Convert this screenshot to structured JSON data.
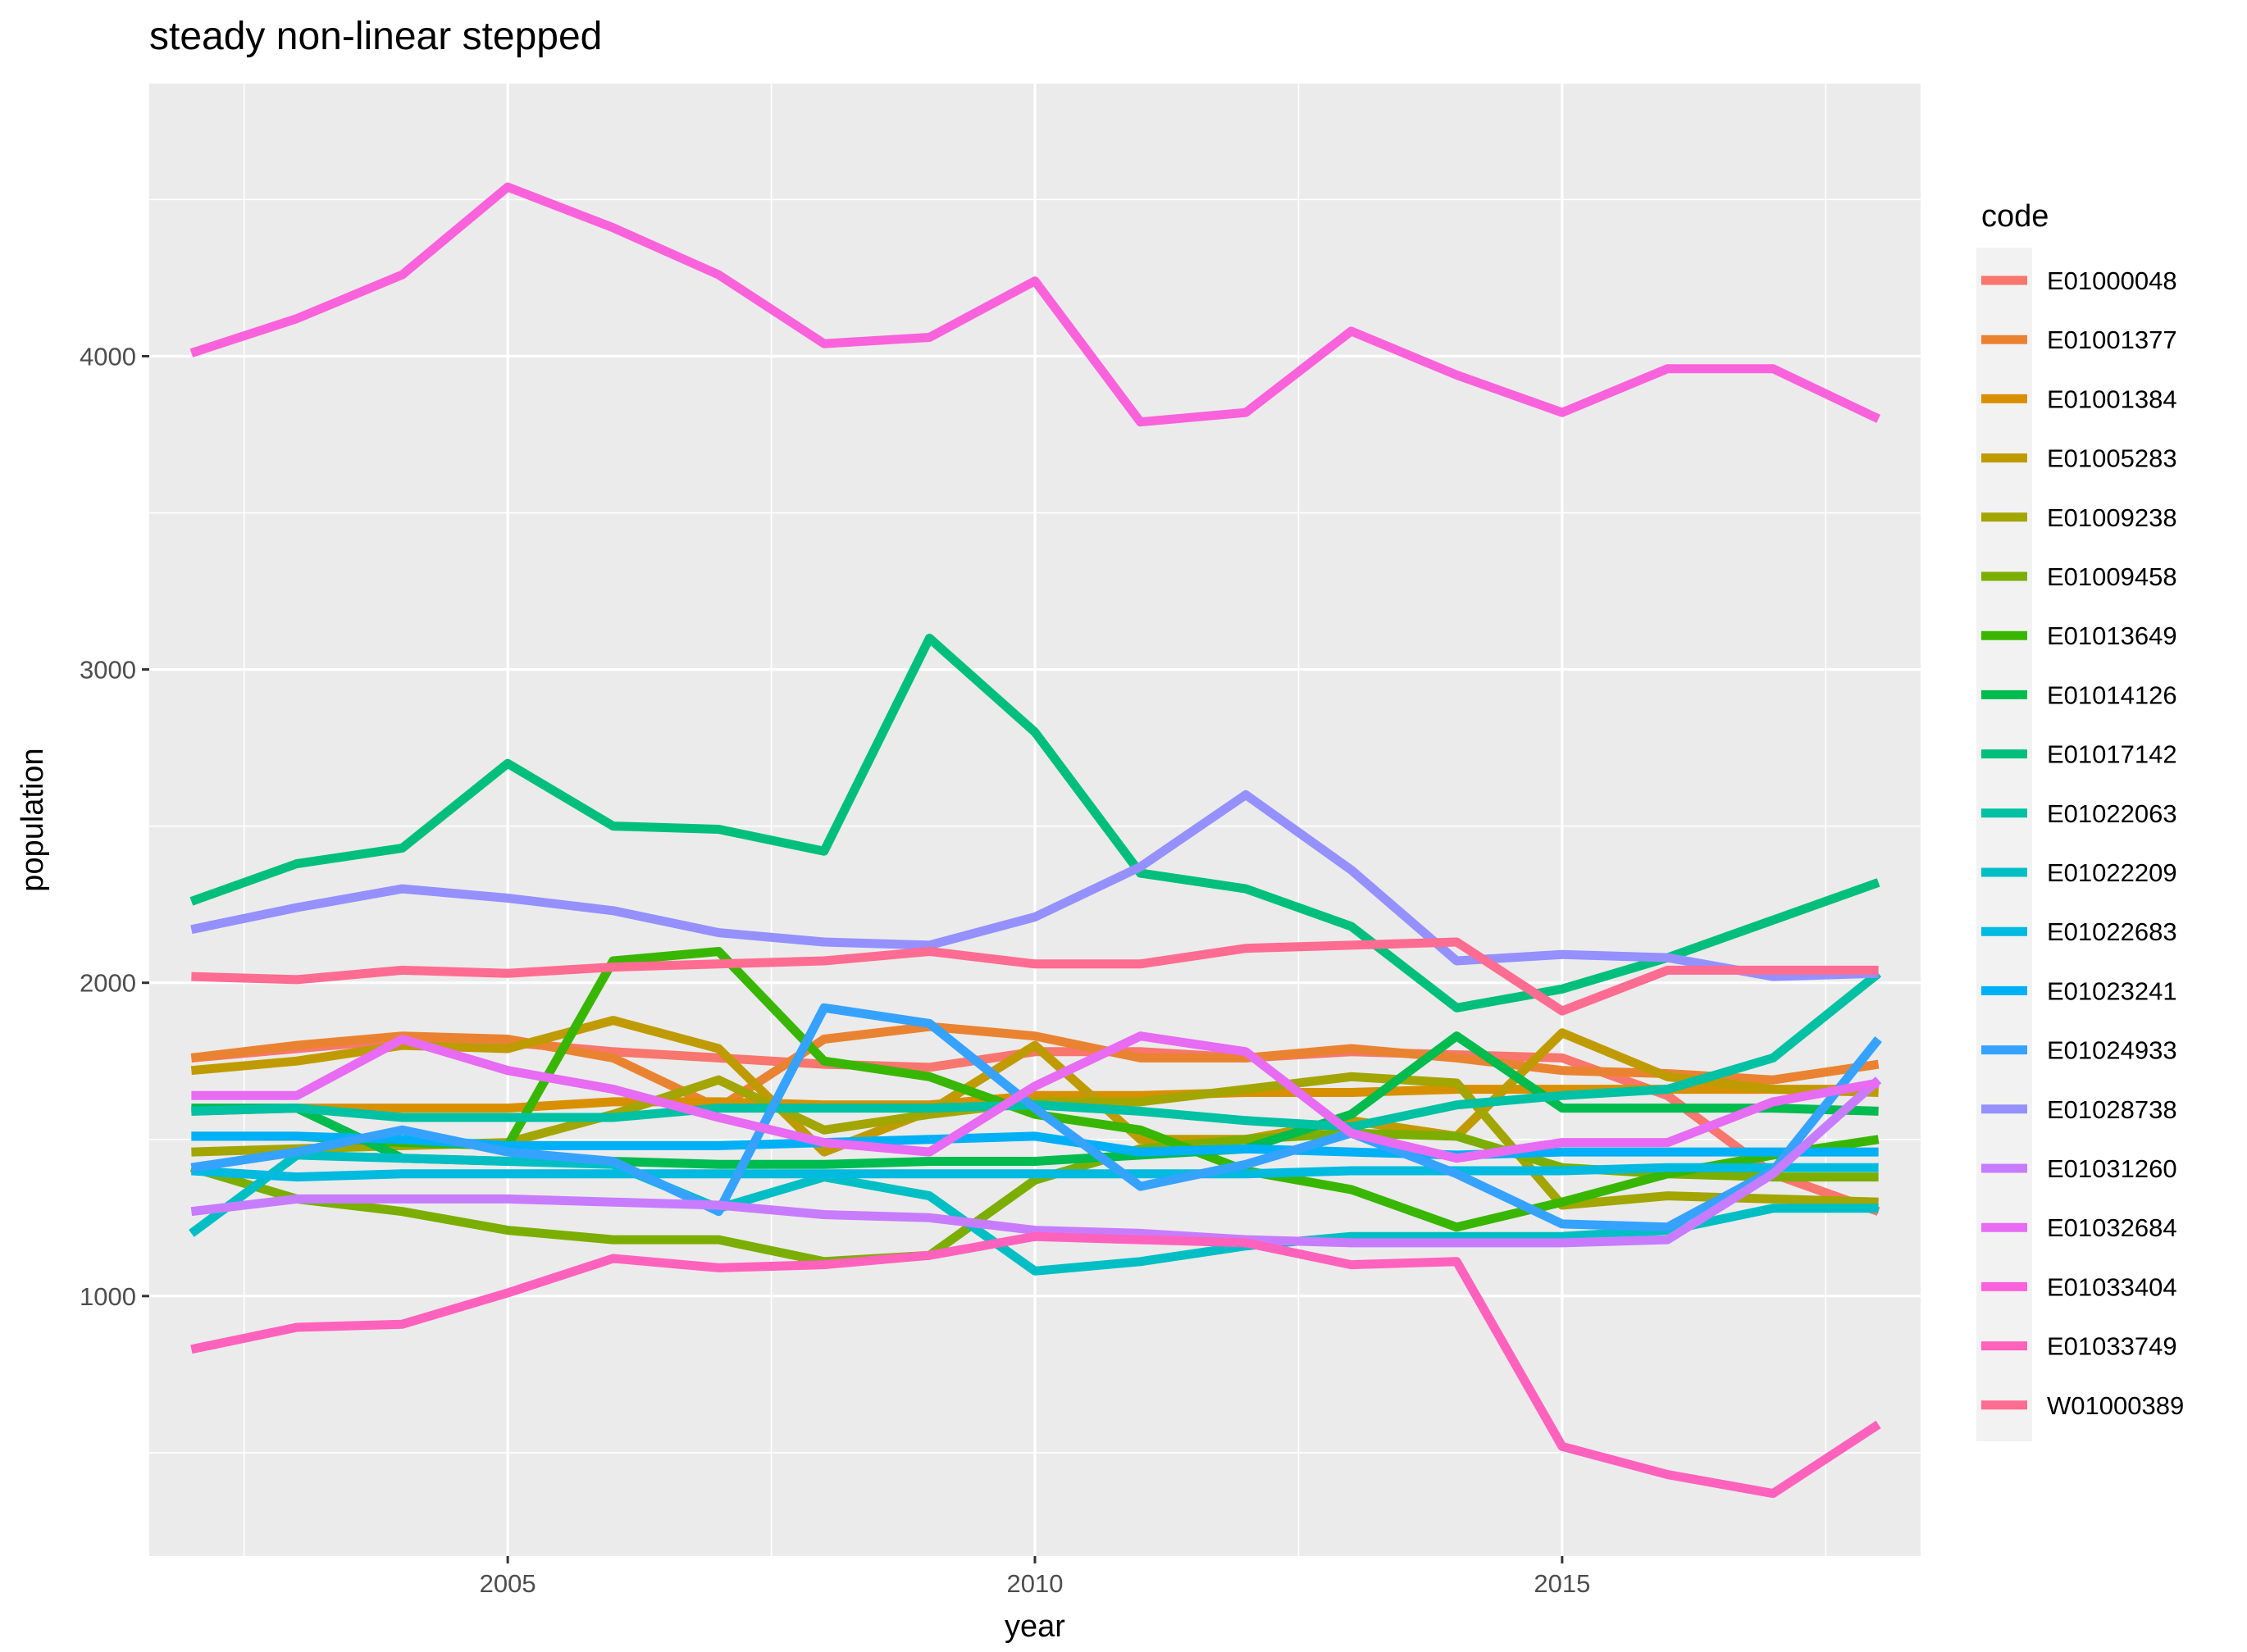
{
  "chart_data": {
    "type": "line",
    "title": "steady non-linear stepped",
    "xlabel": "year",
    "ylabel": "population",
    "xlim": [
      2001.6,
      2018.4
    ],
    "ylim": [
      170,
      4870
    ],
    "x_ticks": [
      2005,
      2010,
      2015
    ],
    "y_ticks": [
      1000,
      2000,
      3000,
      4000
    ],
    "grid": true,
    "legend": {
      "title": "code",
      "position": "right"
    },
    "x": [
      2002,
      2003,
      2004,
      2005,
      2006,
      2007,
      2008,
      2009,
      2010,
      2011,
      2012,
      2013,
      2014,
      2015,
      2016,
      2017,
      2018
    ],
    "series": [
      {
        "name": "E01000048",
        "color": "#F8766D",
        "values": [
          1760,
          1790,
          1820,
          1810,
          1780,
          1760,
          1740,
          1730,
          1780,
          1780,
          1760,
          1780,
          1770,
          1760,
          1640,
          1390,
          1270
        ]
      },
      {
        "name": "E01001377",
        "color": "#EA8331",
        "values": [
          1760,
          1800,
          1830,
          1820,
          1760,
          1600,
          1820,
          1860,
          1830,
          1760,
          1760,
          1790,
          1760,
          1720,
          1710,
          1690,
          1740
        ]
      },
      {
        "name": "E01001384",
        "color": "#D89000",
        "values": [
          1590,
          1600,
          1600,
          1600,
          1620,
          1620,
          1610,
          1610,
          1640,
          1640,
          1650,
          1650,
          1660,
          1660,
          1660,
          1660,
          1660
        ]
      },
      {
        "name": "E01005283",
        "color": "#C09B00",
        "values": [
          1720,
          1750,
          1800,
          1790,
          1880,
          1790,
          1460,
          1590,
          1800,
          1500,
          1500,
          1560,
          1510,
          1840,
          1700,
          1660,
          1650
        ]
      },
      {
        "name": "E01009238",
        "color": "#A3A500",
        "values": [
          1460,
          1470,
          1480,
          1490,
          1580,
          1690,
          1530,
          1580,
          1620,
          1620,
          1660,
          1700,
          1680,
          1290,
          1320,
          1310,
          1300
        ]
      },
      {
        "name": "E01009458",
        "color": "#7CAE00",
        "values": [
          1410,
          1310,
          1270,
          1210,
          1180,
          1180,
          1110,
          1130,
          1370,
          1470,
          1500,
          1520,
          1510,
          1410,
          1390,
          1380,
          1380
        ]
      },
      {
        "name": "E01013649",
        "color": "#39B600",
        "values": [
          1510,
          1510,
          1490,
          1480,
          2070,
          2100,
          1750,
          1700,
          1580,
          1530,
          1400,
          1340,
          1220,
          1300,
          1390,
          1450,
          1500
        ]
      },
      {
        "name": "E01014126",
        "color": "#00BB4E",
        "values": [
          1600,
          1600,
          1440,
          1430,
          1430,
          1420,
          1420,
          1430,
          1430,
          1450,
          1470,
          1580,
          1830,
          1600,
          1600,
          1600,
          1590
        ]
      },
      {
        "name": "E01017142",
        "color": "#00BF7D",
        "values": [
          2260,
          2380,
          2430,
          2700,
          2500,
          2490,
          2420,
          3100,
          2800,
          2350,
          2300,
          2180,
          1920,
          1980,
          2080,
          2200,
          2320
        ]
      },
      {
        "name": "E01022063",
        "color": "#00C1A3",
        "values": [
          1590,
          1600,
          1570,
          1570,
          1570,
          1600,
          1600,
          1600,
          1610,
          1590,
          1560,
          1540,
          1610,
          1640,
          1660,
          1760,
          2030
        ]
      },
      {
        "name": "E01022209",
        "color": "#00BFC4",
        "values": [
          1200,
          1450,
          1440,
          1430,
          1420,
          1280,
          1380,
          1320,
          1080,
          1110,
          1160,
          1190,
          1190,
          1190,
          1210,
          1280,
          1280
        ]
      },
      {
        "name": "E01022683",
        "color": "#00BAE0",
        "values": [
          1400,
          1380,
          1390,
          1390,
          1390,
          1390,
          1390,
          1390,
          1390,
          1390,
          1390,
          1400,
          1400,
          1400,
          1410,
          1410,
          1410
        ]
      },
      {
        "name": "E01023241",
        "color": "#00B0F6",
        "values": [
          1510,
          1510,
          1500,
          1480,
          1480,
          1480,
          1490,
          1500,
          1510,
          1460,
          1470,
          1460,
          1450,
          1460,
          1460,
          1460,
          1460
        ]
      },
      {
        "name": "E01024933",
        "color": "#35A2FF",
        "values": [
          1410,
          1460,
          1530,
          1460,
          1430,
          1270,
          1920,
          1870,
          1600,
          1350,
          1420,
          1520,
          1390,
          1230,
          1220,
          1400,
          1820
        ]
      },
      {
        "name": "E01028738",
        "color": "#9590FF",
        "values": [
          2170,
          2240,
          2300,
          2270,
          2230,
          2160,
          2130,
          2120,
          2210,
          2370,
          2600,
          2360,
          2070,
          2090,
          2080,
          2020,
          2030
        ]
      },
      {
        "name": "E01031260",
        "color": "#C77CFF",
        "values": [
          1270,
          1310,
          1310,
          1310,
          1300,
          1290,
          1260,
          1250,
          1210,
          1200,
          1180,
          1170,
          1170,
          1170,
          1180,
          1390,
          1690
        ]
      },
      {
        "name": "E01032684",
        "color": "#E76BF3",
        "values": [
          1640,
          1640,
          1820,
          1720,
          1660,
          1570,
          1490,
          1460,
          1670,
          1830,
          1780,
          1520,
          1440,
          1490,
          1490,
          1620,
          1680
        ]
      },
      {
        "name": "E01033404",
        "color": "#FA62DB",
        "values": [
          4010,
          4120,
          4260,
          4540,
          4410,
          4260,
          4040,
          4060,
          4240,
          3790,
          3820,
          4080,
          3940,
          3820,
          3960,
          3960,
          3800
        ]
      },
      {
        "name": "E01033749",
        "color": "#FF62BC",
        "values": [
          830,
          900,
          910,
          1010,
          1120,
          1090,
          1100,
          1130,
          1190,
          1180,
          1170,
          1100,
          1110,
          520,
          430,
          370,
          590
        ]
      },
      {
        "name": "W01000389",
        "color": "#FF6C91",
        "values": [
          2020,
          2010,
          2040,
          2030,
          2050,
          2060,
          2070,
          2100,
          2060,
          2060,
          2110,
          2120,
          2130,
          1910,
          2040,
          2040,
          2040
        ]
      }
    ]
  }
}
